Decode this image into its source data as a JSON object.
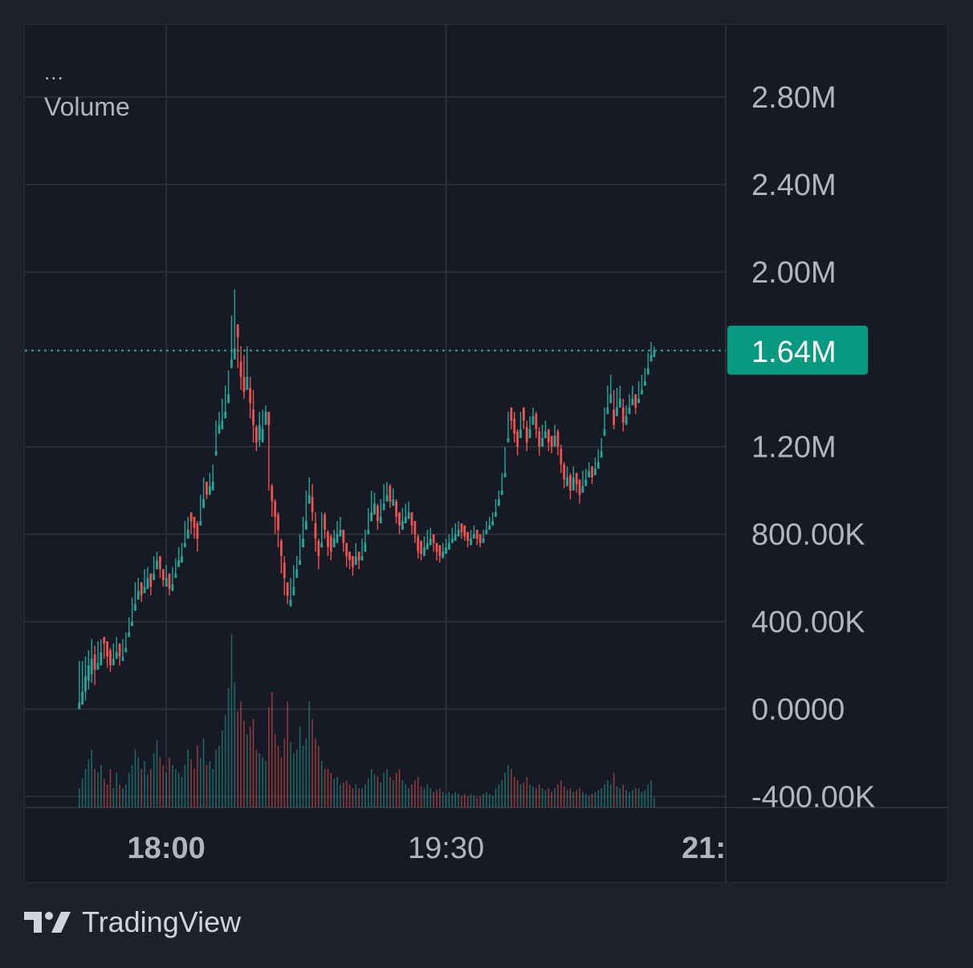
{
  "legend": {
    "collapsed_label": "...",
    "study_label": "Volume"
  },
  "branding": {
    "name": "TradingView",
    "icon": "tradingview-logo-icon"
  },
  "colors": {
    "background": "#1e212c",
    "pane": "#161a25",
    "grid": "#2a2e39",
    "up": "#26a69a",
    "down": "#ef5350",
    "axis_text": "#b2b5be",
    "last_price_bg": "#089981"
  },
  "chart_data": {
    "type": "candlestick",
    "price_axis": {
      "ticks": [
        "2.80M",
        "2.40M",
        "2.00M",
        "1.20M",
        "800.00K",
        "400.00K",
        "0.0000",
        "-400.00K"
      ],
      "tick_values": [
        2800000,
        2400000,
        2000000,
        1200000,
        800000,
        400000,
        0,
        -400000
      ],
      "range": [
        -450000,
        3130000
      ]
    },
    "time_axis": {
      "ticks": [
        "18:00",
        "19:30",
        "21:"
      ],
      "tick_minutes": [
        0,
        90,
        180
      ],
      "range_minutes": [
        -45.5,
        180
      ],
      "bold": [
        true,
        false,
        true
      ]
    },
    "last_price": {
      "label": "1.64M",
      "value": 1640000
    },
    "grid": true,
    "study": "Volume",
    "candle_interval_minutes": 1,
    "first_candle_minute": -28,
    "candles": [
      [
        -28,
        0.0,
        220,
        30,
        0.1,
        0
      ],
      [
        -27,
        80,
        220,
        20,
        0.15,
        0
      ],
      [
        -26,
        150,
        240,
        40,
        0.2,
        0
      ],
      [
        -25,
        200,
        270,
        90,
        0.25,
        0
      ],
      [
        -24,
        230,
        320,
        120,
        0.3,
        0
      ],
      [
        -23,
        180,
        290,
        110,
        0.2,
        1
      ],
      [
        -22,
        210,
        310,
        180,
        0.18,
        0
      ],
      [
        -21,
        260,
        320,
        200,
        0.22,
        0
      ],
      [
        -20,
        300,
        330,
        230,
        0.15,
        1
      ],
      [
        -19,
        240,
        310,
        190,
        0.12,
        1
      ],
      [
        -18,
        200,
        280,
        170,
        0.2,
        1
      ],
      [
        -17,
        230,
        300,
        200,
        0.1,
        0
      ],
      [
        -16,
        260,
        330,
        230,
        0.18,
        0
      ],
      [
        -15,
        240,
        300,
        200,
        0.12,
        1
      ],
      [
        -14,
        240,
        320,
        220,
        0.1,
        0
      ],
      [
        -13,
        280,
        350,
        260,
        0.12,
        0
      ],
      [
        -12,
        350,
        420,
        330,
        0.18,
        0
      ],
      [
        -11,
        400,
        510,
        380,
        0.22,
        0
      ],
      [
        -10,
        480,
        580,
        450,
        0.3,
        0
      ],
      [
        -9,
        540,
        600,
        500,
        0.26,
        0
      ],
      [
        -8,
        520,
        580,
        490,
        0.2,
        1
      ],
      [
        -7,
        560,
        640,
        530,
        0.24,
        0
      ],
      [
        -6,
        600,
        650,
        550,
        0.17,
        0
      ],
      [
        -5,
        560,
        620,
        520,
        0.2,
        1
      ],
      [
        -4,
        620,
        700,
        590,
        0.28,
        0
      ],
      [
        -3,
        680,
        720,
        640,
        0.35,
        0
      ],
      [
        -2,
        640,
        700,
        600,
        0.26,
        1
      ],
      [
        -1,
        590,
        640,
        560,
        0.22,
        1
      ],
      [
        0,
        600,
        660,
        560,
        0.18,
        0
      ],
      [
        1,
        550,
        620,
        520,
        0.26,
        1
      ],
      [
        2,
        570,
        650,
        540,
        0.22,
        0
      ],
      [
        3,
        620,
        690,
        600,
        0.2,
        0
      ],
      [
        4,
        680,
        740,
        650,
        0.18,
        0
      ],
      [
        5,
        700,
        760,
        670,
        0.16,
        0
      ],
      [
        6,
        760,
        860,
        740,
        0.22,
        0
      ],
      [
        7,
        820,
        880,
        780,
        0.3,
        0
      ],
      [
        8,
        860,
        900,
        800,
        0.25,
        1
      ],
      [
        9,
        830,
        880,
        780,
        0.2,
        1
      ],
      [
        10,
        780,
        860,
        720,
        0.32,
        1
      ],
      [
        11,
        860,
        980,
        840,
        0.26,
        0
      ],
      [
        12,
        960,
        1060,
        920,
        0.36,
        0
      ],
      [
        13,
        980,
        1040,
        960,
        0.22,
        1
      ],
      [
        14,
        1020,
        1080,
        980,
        0.24,
        0
      ],
      [
        15,
        1040,
        1120,
        1000,
        0.2,
        0
      ],
      [
        16,
        1180,
        1320,
        1160,
        0.3,
        0
      ],
      [
        17,
        1300,
        1360,
        1260,
        0.32,
        0
      ],
      [
        18,
        1320,
        1420,
        1280,
        0.4,
        0
      ],
      [
        19,
        1360,
        1480,
        1330,
        0.48,
        0
      ],
      [
        20,
        1440,
        1550,
        1400,
        0.62,
        0
      ],
      [
        21,
        1600,
        1800,
        1560,
        0.9,
        0
      ],
      [
        22,
        1650,
        1920,
        1600,
        0.65,
        0
      ],
      [
        23,
        1700,
        1760,
        1560,
        0.5,
        1
      ],
      [
        24,
        1520,
        1660,
        1460,
        0.55,
        1
      ],
      [
        25,
        1450,
        1620,
        1420,
        0.45,
        1
      ],
      [
        26,
        1520,
        1660,
        1460,
        0.38,
        0
      ],
      [
        27,
        1400,
        1520,
        1330,
        0.42,
        1
      ],
      [
        28,
        1300,
        1460,
        1220,
        0.46,
        1
      ],
      [
        29,
        1220,
        1300,
        1180,
        0.3,
        1
      ],
      [
        30,
        1300,
        1360,
        1200,
        0.28,
        0
      ],
      [
        31,
        1280,
        1370,
        1220,
        0.26,
        0
      ],
      [
        32,
        1360,
        1390,
        1300,
        0.24,
        0
      ],
      [
        33,
        1300,
        1360,
        1000,
        0.52,
        1
      ],
      [
        34,
        950,
        1030,
        880,
        0.6,
        1
      ],
      [
        35,
        880,
        960,
        800,
        0.38,
        1
      ],
      [
        36,
        820,
        900,
        740,
        0.32,
        1
      ],
      [
        37,
        700,
        780,
        620,
        0.26,
        1
      ],
      [
        38,
        600,
        700,
        520,
        0.36,
        1
      ],
      [
        39,
        520,
        580,
        480,
        0.55,
        1
      ],
      [
        40,
        500,
        600,
        470,
        0.34,
        0
      ],
      [
        41,
        560,
        660,
        520,
        0.28,
        0
      ],
      [
        42,
        640,
        700,
        600,
        0.3,
        0
      ],
      [
        43,
        680,
        800,
        660,
        0.42,
        0
      ],
      [
        44,
        780,
        880,
        740,
        0.32,
        0
      ],
      [
        45,
        860,
        1000,
        820,
        0.36,
        0
      ],
      [
        46,
        980,
        1060,
        940,
        0.55,
        0
      ],
      [
        47,
        900,
        1030,
        860,
        0.46,
        1
      ],
      [
        48,
        780,
        900,
        720,
        0.36,
        1
      ],
      [
        49,
        700,
        780,
        640,
        0.32,
        1
      ],
      [
        50,
        760,
        900,
        740,
        0.24,
        0
      ],
      [
        51,
        820,
        900,
        780,
        0.2,
        1
      ],
      [
        52,
        740,
        820,
        700,
        0.2,
        1
      ],
      [
        53,
        720,
        800,
        680,
        0.18,
        1
      ],
      [
        54,
        780,
        820,
        740,
        0.15,
        0
      ],
      [
        55,
        800,
        860,
        760,
        0.16,
        0
      ],
      [
        56,
        820,
        880,
        790,
        0.12,
        0
      ],
      [
        57,
        760,
        820,
        720,
        0.13,
        1
      ],
      [
        58,
        700,
        760,
        650,
        0.14,
        1
      ],
      [
        59,
        680,
        720,
        640,
        0.12,
        1
      ],
      [
        60,
        650,
        700,
        610,
        0.1,
        1
      ],
      [
        61,
        700,
        760,
        660,
        0.12,
        0
      ],
      [
        62,
        680,
        720,
        640,
        0.1,
        1
      ],
      [
        63,
        700,
        780,
        680,
        0.1,
        0
      ],
      [
        64,
        760,
        820,
        720,
        0.12,
        0
      ],
      [
        65,
        820,
        920,
        800,
        0.15,
        0
      ],
      [
        66,
        900,
        1000,
        860,
        0.2,
        0
      ],
      [
        67,
        940,
        990,
        890,
        0.17,
        0
      ],
      [
        68,
        860,
        940,
        820,
        0.16,
        1
      ],
      [
        69,
        880,
        960,
        850,
        0.13,
        0
      ],
      [
        70,
        940,
        1030,
        910,
        0.18,
        0
      ],
      [
        71,
        980,
        1040,
        950,
        0.2,
        0
      ],
      [
        72,
        950,
        1030,
        920,
        0.16,
        1
      ],
      [
        73,
        960,
        1010,
        930,
        0.14,
        0
      ],
      [
        74,
        880,
        960,
        850,
        0.18,
        1
      ],
      [
        75,
        840,
        900,
        800,
        0.2,
        1
      ],
      [
        76,
        860,
        920,
        820,
        0.14,
        0
      ],
      [
        77,
        880,
        940,
        850,
        0.12,
        0
      ],
      [
        78,
        900,
        950,
        870,
        0.1,
        0
      ],
      [
        79,
        840,
        900,
        800,
        0.12,
        1
      ],
      [
        80,
        800,
        860,
        760,
        0.14,
        1
      ],
      [
        81,
        720,
        800,
        690,
        0.16,
        1
      ],
      [
        82,
        710,
        770,
        680,
        0.11,
        1
      ],
      [
        83,
        740,
        790,
        700,
        0.1,
        0
      ],
      [
        84,
        760,
        820,
        730,
        0.12,
        0
      ],
      [
        85,
        780,
        830,
        750,
        0.1,
        0
      ],
      [
        86,
        760,
        800,
        720,
        0.08,
        1
      ],
      [
        87,
        720,
        760,
        680,
        0.09,
        1
      ],
      [
        88,
        700,
        750,
        670,
        0.1,
        1
      ],
      [
        89,
        720,
        760,
        690,
        0.08,
        0
      ],
      [
        90,
        740,
        780,
        710,
        0.07,
        0
      ],
      [
        91,
        760,
        800,
        730,
        0.08,
        0
      ],
      [
        92,
        780,
        830,
        760,
        0.07,
        0
      ],
      [
        93,
        800,
        850,
        770,
        0.08,
        0
      ],
      [
        94,
        820,
        860,
        790,
        0.07,
        0
      ],
      [
        95,
        810,
        850,
        780,
        0.06,
        1
      ],
      [
        96,
        790,
        840,
        770,
        0.07,
        1
      ],
      [
        97,
        770,
        810,
        740,
        0.06,
        1
      ],
      [
        98,
        780,
        820,
        750,
        0.07,
        0
      ],
      [
        99,
        800,
        840,
        780,
        0.06,
        0
      ],
      [
        100,
        780,
        820,
        750,
        0.05,
        1
      ],
      [
        101,
        760,
        800,
        740,
        0.06,
        1
      ],
      [
        102,
        780,
        820,
        760,
        0.07,
        0
      ],
      [
        103,
        820,
        860,
        800,
        0.08,
        0
      ],
      [
        104,
        840,
        880,
        820,
        0.07,
        0
      ],
      [
        105,
        860,
        900,
        840,
        0.06,
        0
      ],
      [
        106,
        900,
        960,
        880,
        0.1,
        0
      ],
      [
        107,
        960,
        1000,
        930,
        0.12,
        0
      ],
      [
        108,
        1000,
        1080,
        980,
        0.14,
        0
      ],
      [
        109,
        1080,
        1200,
        1060,
        0.18,
        0
      ],
      [
        110,
        1240,
        1360,
        1220,
        0.22,
        0
      ],
      [
        111,
        1320,
        1380,
        1280,
        0.2,
        1
      ],
      [
        112,
        1260,
        1360,
        1220,
        0.16,
        1
      ],
      [
        113,
        1200,
        1280,
        1160,
        0.14,
        1
      ],
      [
        114,
        1280,
        1360,
        1240,
        0.12,
        0
      ],
      [
        115,
        1320,
        1380,
        1280,
        0.13,
        1
      ],
      [
        116,
        1220,
        1320,
        1180,
        0.16,
        1
      ],
      [
        117,
        1280,
        1340,
        1240,
        0.12,
        0
      ],
      [
        118,
        1340,
        1380,
        1300,
        0.11,
        0
      ],
      [
        119,
        1280,
        1360,
        1240,
        0.1,
        1
      ],
      [
        120,
        1200,
        1290,
        1160,
        0.12,
        1
      ],
      [
        121,
        1240,
        1300,
        1200,
        0.1,
        0
      ],
      [
        122,
        1270,
        1320,
        1240,
        0.09,
        0
      ],
      [
        123,
        1220,
        1280,
        1180,
        0.1,
        1
      ],
      [
        124,
        1200,
        1250,
        1170,
        0.08,
        1
      ],
      [
        125,
        1250,
        1300,
        1200,
        0.1,
        0
      ],
      [
        126,
        1200,
        1280,
        1160,
        0.12,
        1
      ],
      [
        127,
        1120,
        1210,
        1080,
        0.14,
        1
      ],
      [
        128,
        1050,
        1130,
        1010,
        0.11,
        1
      ],
      [
        129,
        1060,
        1110,
        1020,
        0.09,
        0
      ],
      [
        130,
        1000,
        1080,
        960,
        0.1,
        1
      ],
      [
        131,
        1060,
        1110,
        1000,
        0.08,
        0
      ],
      [
        132,
        1030,
        1080,
        990,
        0.09,
        1
      ],
      [
        133,
        980,
        1050,
        940,
        0.1,
        1
      ],
      [
        134,
        1020,
        1090,
        990,
        0.08,
        0
      ],
      [
        135,
        1050,
        1100,
        1020,
        0.07,
        0
      ],
      [
        136,
        1090,
        1130,
        1060,
        0.06,
        0
      ],
      [
        137,
        1060,
        1110,
        1030,
        0.07,
        1
      ],
      [
        138,
        1100,
        1150,
        1070,
        0.08,
        0
      ],
      [
        139,
        1130,
        1190,
        1100,
        0.09,
        0
      ],
      [
        140,
        1180,
        1240,
        1150,
        0.1,
        0
      ],
      [
        141,
        1280,
        1380,
        1250,
        0.12,
        0
      ],
      [
        142,
        1380,
        1480,
        1350,
        0.14,
        0
      ],
      [
        143,
        1440,
        1530,
        1400,
        0.12,
        0
      ],
      [
        144,
        1300,
        1460,
        1280,
        0.18,
        1
      ],
      [
        145,
        1380,
        1470,
        1340,
        0.11,
        0
      ],
      [
        146,
        1420,
        1480,
        1380,
        0.1,
        0
      ],
      [
        147,
        1310,
        1420,
        1270,
        0.12,
        1
      ],
      [
        148,
        1340,
        1390,
        1300,
        0.09,
        0
      ],
      [
        149,
        1380,
        1440,
        1350,
        0.08,
        0
      ],
      [
        150,
        1420,
        1480,
        1390,
        0.09,
        0
      ],
      [
        151,
        1380,
        1440,
        1350,
        0.1,
        1
      ],
      [
        152,
        1420,
        1500,
        1400,
        0.1,
        0
      ],
      [
        153,
        1460,
        1530,
        1440,
        0.08,
        0
      ],
      [
        154,
        1500,
        1560,
        1480,
        0.09,
        0
      ],
      [
        155,
        1560,
        1630,
        1530,
        0.12,
        0
      ],
      [
        156,
        1620,
        1680,
        1590,
        0.14,
        0
      ],
      [
        157,
        1640,
        1660,
        1610,
        0.05,
        0
      ]
    ]
  }
}
